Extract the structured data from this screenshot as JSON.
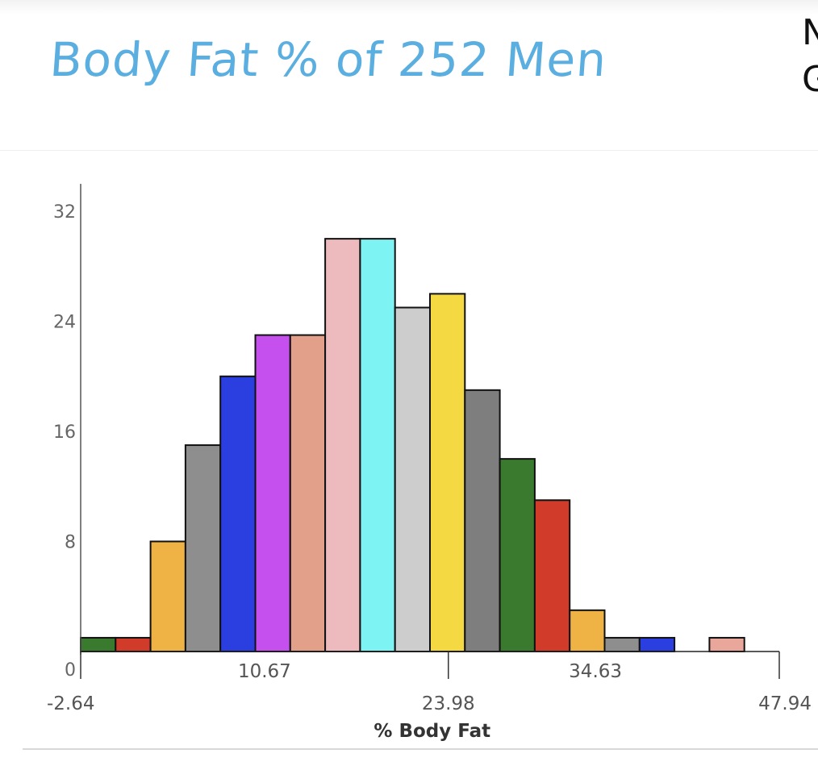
{
  "heading": "Body Fat % of 252 Men",
  "corner_text": "N\nG",
  "chart_data": {
    "type": "bar",
    "histogram": true,
    "title": "",
    "xlabel": "% Body Fat",
    "ylabel": "",
    "bin_start": -2.64,
    "bin_width": 2.529,
    "x_tick_labels_lower": [
      "-2.64",
      "23.98",
      "47.94"
    ],
    "x_tick_labels_upper": [
      "10.67",
      "34.63"
    ],
    "x_major_ticks": [
      "-2.64",
      "23.98",
      "47.94"
    ],
    "y_ticks": [
      0,
      8,
      16,
      24,
      32
    ],
    "ylim": [
      0,
      32
    ],
    "values": [
      1,
      1,
      8,
      15,
      20,
      23,
      23,
      30,
      30,
      25,
      26,
      19,
      14,
      11,
      3,
      1,
      1,
      0,
      1
    ],
    "colors": [
      "#3a7a2e",
      "#d13b2a",
      "#eeb245",
      "#8e8e8e",
      "#2b3fe0",
      "#c550ee",
      "#e29f8a",
      "#edbbbd",
      "#7ef3f3",
      "#cdcdcd",
      "#f4d943",
      "#7e7e7e",
      "#3a7a2e",
      "#d13b2a",
      "#eeb245",
      "#8e8e8e",
      "#2b3fe0",
      "#ffffff",
      "#e8a79a"
    ]
  }
}
